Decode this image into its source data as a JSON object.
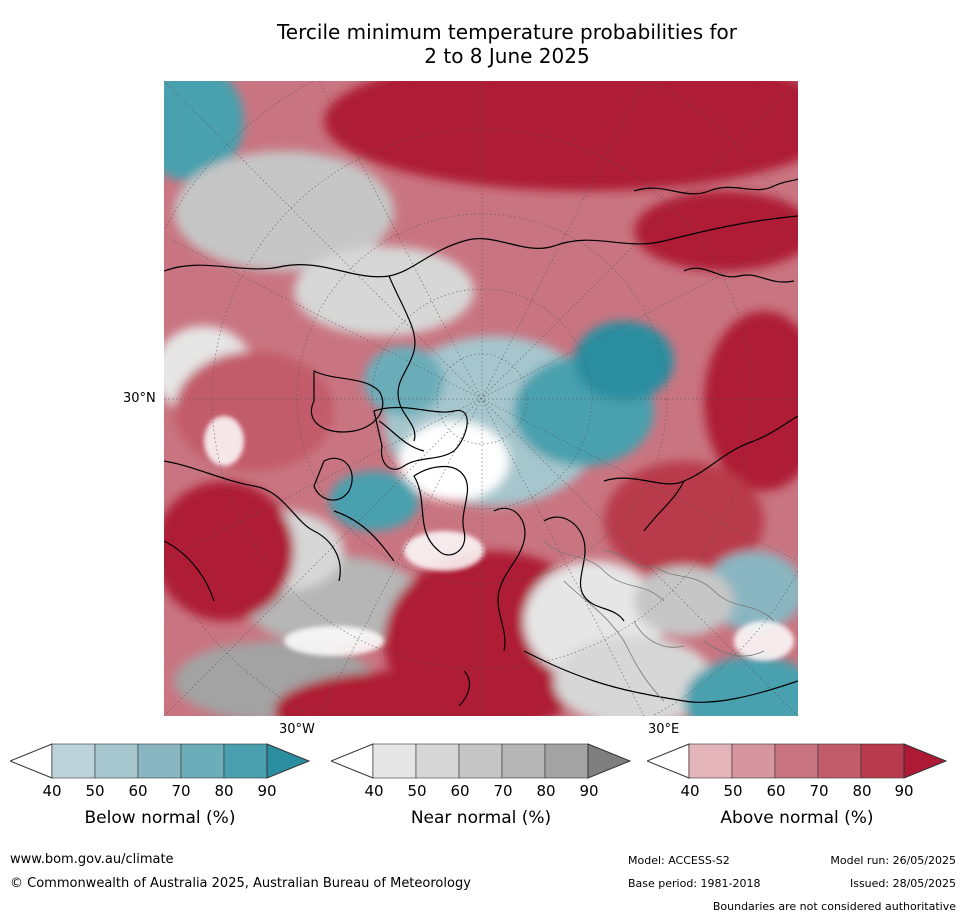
{
  "title": {
    "line1": "Tercile minimum temperature probabilities for",
    "line2": "2 to 8 June 2025"
  },
  "map": {
    "lat_labels": [
      "30°N"
    ],
    "lon_labels": [
      "30°W",
      "30°E"
    ],
    "colors": {
      "below": [
        "#ffffff",
        "#bcd3d9",
        "#a6c6cd",
        "#8ab6c1",
        "#6badb9",
        "#4aa0ae",
        "#2a8ea0"
      ],
      "near": [
        "#ffffff",
        "#e6e6e6",
        "#d7d7d7",
        "#c6c6c6",
        "#b6b6b6",
        "#a3a3a3",
        "#7f7f7f"
      ],
      "above": [
        "#ffffff",
        "#e3b5bb",
        "#d6959f",
        "#c97581",
        "#c35c6a",
        "#b93a4c",
        "#ae1a36"
      ]
    }
  },
  "colorbars": [
    {
      "id": "below",
      "label": "Below normal (%)",
      "ticks": [
        "40",
        "50",
        "60",
        "70",
        "80",
        "90"
      ]
    },
    {
      "id": "near",
      "label": "Near normal (%)",
      "ticks": [
        "40",
        "50",
        "60",
        "70",
        "80",
        "90"
      ]
    },
    {
      "id": "above",
      "label": "Above normal (%)",
      "ticks": [
        "40",
        "50",
        "60",
        "70",
        "80",
        "90"
      ]
    }
  ],
  "footer": {
    "website": "www.bom.gov.au/climate",
    "copyright": "© Commonwealth of Australia 2025, Australian Bureau of Meteorology",
    "model": "Model: ACCESS-S2",
    "base_period": "Base period: 1981-2018",
    "model_run": "Model run: 26/05/2025",
    "issued": "Issued: 28/05/2025",
    "disclaimer": "Boundaries are not considered authoritative"
  }
}
